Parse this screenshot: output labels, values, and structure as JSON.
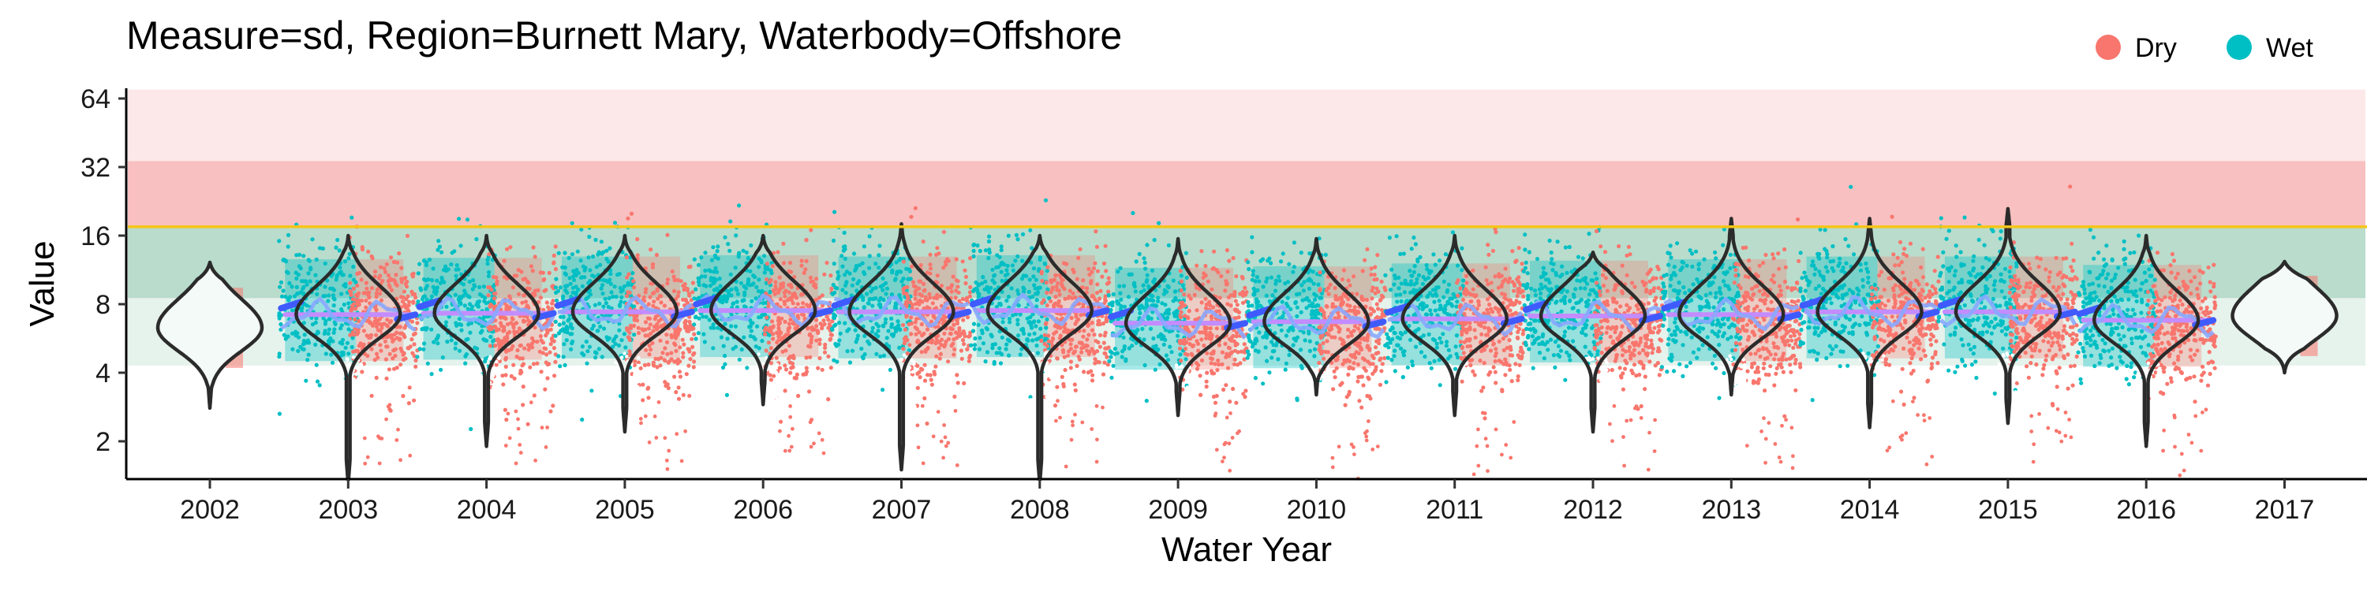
{
  "chart_data": {
    "type": "violin",
    "title": "Measure=sd, Region=Burnett Mary, Waterbody=Offshore",
    "xlabel": "Water Year",
    "ylabel": "Value",
    "yscale": "log2",
    "ylim": [
      1.3,
      80
    ],
    "ytick_values": [
      2,
      4,
      8,
      16,
      32,
      64
    ],
    "ytick_labels": [
      "2",
      "4",
      "8",
      "16",
      "32",
      "64"
    ],
    "categories": [
      "2002",
      "2003",
      "2004",
      "2005",
      "2006",
      "2007",
      "2008",
      "2009",
      "2010",
      "2011",
      "2012",
      "2013",
      "2014",
      "2015",
      "2016",
      "2017"
    ],
    "legend": {
      "position": "top-right",
      "entries": [
        {
          "label": "Dry",
          "color": "#F8766D"
        },
        {
          "label": "Wet",
          "color": "#00BFC4"
        }
      ]
    },
    "guideline": {
      "value": 17.5,
      "color": "#F5C518"
    },
    "bands": [
      {
        "from": 34,
        "to": 70,
        "color": "#fce8e8"
      },
      {
        "from": 17.5,
        "to": 34,
        "color": "#f8c0c0"
      },
      {
        "from": 8.5,
        "to": 17.5,
        "color": "#b9dccc"
      },
      {
        "from": 4.3,
        "to": 8.5,
        "color": "#e6f2ec"
      }
    ],
    "series": [
      {
        "name": "Dry",
        "color": "#F8766D"
      },
      {
        "name": "Wet",
        "color": "#00BFC4"
      }
    ],
    "violins": [
      {
        "year": "2002",
        "median": 6.3,
        "min": 2.8,
        "max": 12.2,
        "has_points": false
      },
      {
        "year": "2003",
        "median": 7.2,
        "min": 1.3,
        "max": 16.0,
        "has_points": true
      },
      {
        "year": "2004",
        "median": 7.3,
        "min": 1.9,
        "max": 16.0,
        "has_points": true
      },
      {
        "year": "2005",
        "median": 7.4,
        "min": 2.2,
        "max": 16.0,
        "has_points": true
      },
      {
        "year": "2006",
        "median": 7.5,
        "min": 2.9,
        "max": 16.0,
        "has_points": true
      },
      {
        "year": "2007",
        "median": 7.4,
        "min": 1.5,
        "max": 18.0,
        "has_points": true
      },
      {
        "year": "2008",
        "median": 7.5,
        "min": 1.3,
        "max": 16.0,
        "has_points": true
      },
      {
        "year": "2009",
        "median": 6.6,
        "min": 2.6,
        "max": 15.5,
        "has_points": true
      },
      {
        "year": "2010",
        "median": 6.7,
        "min": 3.2,
        "max": 15.5,
        "has_points": true
      },
      {
        "year": "2011",
        "median": 6.9,
        "min": 2.6,
        "max": 16.0,
        "has_points": true
      },
      {
        "year": "2012",
        "median": 7.1,
        "min": 2.2,
        "max": 13.5,
        "has_points": true
      },
      {
        "year": "2013",
        "median": 7.2,
        "min": 3.2,
        "max": 19.0,
        "has_points": true
      },
      {
        "year": "2014",
        "median": 7.4,
        "min": 2.3,
        "max": 19.0,
        "has_points": true
      },
      {
        "year": "2015",
        "median": 7.4,
        "min": 2.4,
        "max": 21.0,
        "has_points": true
      },
      {
        "year": "2016",
        "median": 6.8,
        "min": 1.9,
        "max": 16.0,
        "has_points": true
      },
      {
        "year": "2017",
        "median": 7.1,
        "min": 4.0,
        "max": 12.3,
        "has_points": false
      }
    ]
  }
}
